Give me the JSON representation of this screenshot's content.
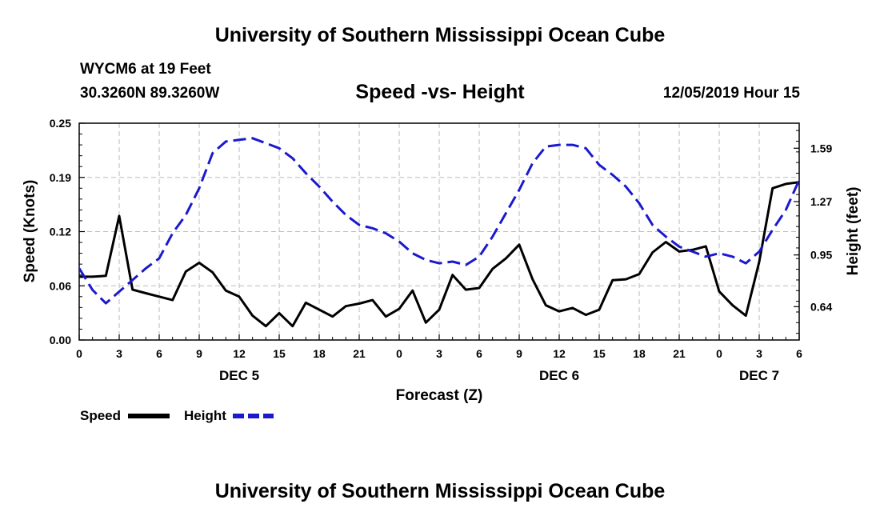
{
  "header": {
    "title": "University of Southern Mississippi Ocean Cube",
    "station": "WYCM6 at 19 Feet",
    "coords": "30.3260N 89.3260W",
    "subtitle": "Speed -vs- Height",
    "datetime": "12/05/2019 Hour 15"
  },
  "footer": {
    "title": "University of Southern Mississippi Ocean Cube"
  },
  "colors": {
    "speed": "#000000",
    "height": "#1a1acc",
    "grid": "#bbbbbb"
  },
  "chart_data": {
    "type": "line",
    "title": "Speed -vs- Height",
    "xlabel": "Forecast (Z)",
    "ylabel_left": "Speed (Knots)",
    "ylabel_right": "Height (feet)",
    "x_range_hours": [
      0,
      54
    ],
    "ylim_left": [
      0,
      0.25
    ],
    "ylim_right": [
      0.44,
      1.74
    ],
    "left_ticks": [
      "0.00",
      "0.06",
      "0.12",
      "0.19",
      "0.25"
    ],
    "left_tick_values": [
      0,
      0.0625,
      0.125,
      0.1875,
      0.25
    ],
    "right_ticks": [
      "0.64",
      "0.95",
      "1.27",
      "1.59"
    ],
    "right_tick_values": [
      0.64,
      0.95,
      1.27,
      1.59
    ],
    "x_tick_labels": [
      "0",
      "3",
      "6",
      "9",
      "12",
      "15",
      "18",
      "21",
      "0",
      "3",
      "6",
      "9",
      "12",
      "15",
      "18",
      "21",
      "0",
      "3",
      "6"
    ],
    "date_labels": [
      {
        "label": "DEC 5",
        "hour": 12
      },
      {
        "label": "DEC 6",
        "hour": 36
      },
      {
        "label": "DEC 7",
        "hour": 51
      }
    ],
    "series": [
      {
        "name": "Speed",
        "axis": "left",
        "style": "solid",
        "x": [
          0,
          1,
          2,
          3,
          4,
          5,
          6,
          7,
          8,
          9,
          10,
          11,
          12,
          13,
          14,
          15,
          16,
          17,
          18,
          19,
          20,
          21,
          22,
          23,
          24,
          25,
          26,
          27,
          28,
          29,
          30,
          31,
          32,
          33,
          34,
          35,
          36,
          37,
          38,
          39,
          40,
          41,
          42,
          43,
          44,
          45,
          46,
          47,
          48,
          49,
          50,
          51,
          52,
          53,
          54
        ],
        "values": [
          0.073,
          0.073,
          0.074,
          0.143,
          0.058,
          0.054,
          0.05,
          0.046,
          0.079,
          0.089,
          0.078,
          0.057,
          0.05,
          0.028,
          0.016,
          0.031,
          0.016,
          0.043,
          0.035,
          0.027,
          0.039,
          0.042,
          0.046,
          0.027,
          0.036,
          0.057,
          0.02,
          0.035,
          0.075,
          0.058,
          0.06,
          0.082,
          0.094,
          0.11,
          0.07,
          0.04,
          0.033,
          0.037,
          0.029,
          0.035,
          0.069,
          0.07,
          0.076,
          0.101,
          0.113,
          0.102,
          0.104,
          0.108,
          0.056,
          0.04,
          0.028,
          0.09,
          0.175,
          0.18,
          0.182
        ]
      },
      {
        "name": "Height",
        "axis": "right",
        "style": "dashed",
        "x": [
          0,
          1,
          2,
          3,
          4,
          5,
          6,
          7,
          8,
          9,
          10,
          11,
          12,
          13,
          14,
          15,
          16,
          17,
          18,
          19,
          20,
          21,
          22,
          23,
          24,
          25,
          26,
          27,
          28,
          29,
          30,
          31,
          32,
          33,
          34,
          35,
          36,
          37,
          38,
          39,
          40,
          41,
          42,
          43,
          44,
          45,
          46,
          47,
          48,
          49,
          50,
          51,
          52,
          53,
          54
        ],
        "values": [
          0.87,
          0.74,
          0.66,
          0.73,
          0.8,
          0.87,
          0.93,
          1.08,
          1.19,
          1.35,
          1.56,
          1.63,
          1.64,
          1.65,
          1.62,
          1.59,
          1.53,
          1.44,
          1.36,
          1.27,
          1.19,
          1.13,
          1.11,
          1.08,
          1.03,
          0.96,
          0.92,
          0.9,
          0.91,
          0.89,
          0.94,
          1.06,
          1.2,
          1.34,
          1.5,
          1.6,
          1.61,
          1.61,
          1.59,
          1.49,
          1.43,
          1.36,
          1.26,
          1.13,
          1.06,
          1.0,
          0.97,
          0.94,
          0.96,
          0.94,
          0.9,
          0.97,
          1.1,
          1.22,
          1.4
        ]
      }
    ],
    "legend": [
      {
        "label": "Speed",
        "style": "solid"
      },
      {
        "label": "Height",
        "style": "dashed"
      }
    ]
  }
}
